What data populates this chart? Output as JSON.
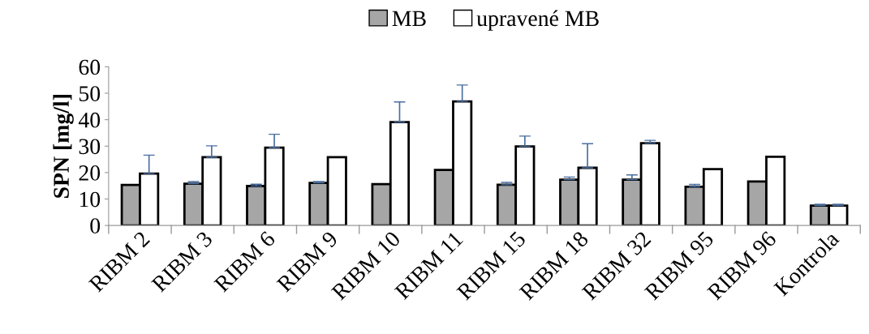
{
  "chart_data": {
    "type": "bar",
    "ylabel": "SPN [mg/l]",
    "categories": [
      "RIBM 2",
      "RIBM 3",
      "RIBM 6",
      "RIBM 9",
      "RIBM 10",
      "RIBM 11",
      "RIBM 15",
      "RIBM 18",
      "RIBM 32",
      "RIBM 95",
      "RIBM 96",
      "Kontrola"
    ],
    "series": [
      {
        "name": "MB",
        "color": "#a6a6a6",
        "values": [
          15.3,
          15.8,
          14.9,
          16.1,
          15.6,
          21.0,
          15.4,
          17.3,
          17.3,
          14.6,
          16.6,
          7.5
        ],
        "errors": [
          null,
          [
            15.8,
            16.6
          ],
          [
            14.9,
            15.6
          ],
          [
            16.1,
            16.6
          ],
          null,
          null,
          [
            15.4,
            16.3
          ],
          [
            17.3,
            18.3
          ],
          [
            17.3,
            19.1
          ],
          [
            14.6,
            15.5
          ],
          null,
          [
            7.5,
            8.0
          ]
        ]
      },
      {
        "name": "upravené MB",
        "color": "#ffffff",
        "values": [
          19.6,
          25.8,
          29.4,
          25.8,
          39.1,
          46.9,
          29.9,
          21.8,
          31.1,
          21.3,
          26.0,
          7.5
        ],
        "errors": [
          [
            19.6,
            26.6
          ],
          [
            25.8,
            30.1
          ],
          [
            29.4,
            34.5
          ],
          null,
          [
            39.1,
            46.7
          ],
          [
            46.9,
            53.1
          ],
          [
            29.9,
            33.8
          ],
          [
            21.8,
            30.9
          ],
          [
            31.1,
            32.2
          ],
          null,
          null,
          [
            7.5,
            8.0
          ]
        ]
      }
    ],
    "ylim": [
      0,
      60
    ],
    "yticks": [
      0,
      10,
      20,
      30,
      40,
      50,
      60
    ],
    "grid": false,
    "legend": "top"
  }
}
